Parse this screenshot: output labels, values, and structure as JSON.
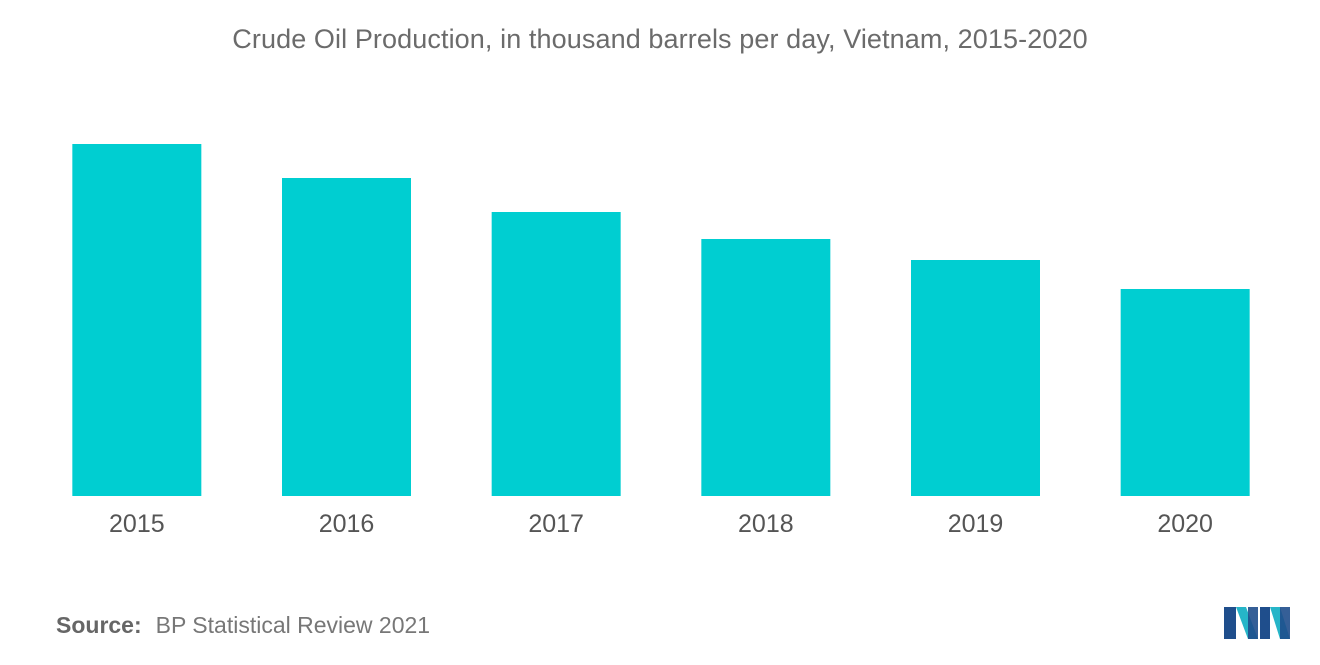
{
  "chart_data": {
    "type": "bar",
    "title": "Crude Oil Production, in thousand barrels per day, Vietnam, 2015-2020",
    "categories": [
      "2015",
      "2016",
      "2017",
      "2018",
      "2019",
      "2020"
    ],
    "values": [
      352,
      318,
      284,
      257,
      236,
      207
    ],
    "xlabel": "",
    "ylabel": "",
    "ylim": [
      0,
      400
    ],
    "grid": false,
    "legend": "none",
    "bar_color": "#00ced1"
  },
  "source": {
    "label": "Source:",
    "text": "BP Statistical Review 2021"
  },
  "logo": {
    "icon": "mordor-intelligence-logo-icon",
    "colors": [
      "#1f4e8c",
      "#26b5c8"
    ]
  }
}
